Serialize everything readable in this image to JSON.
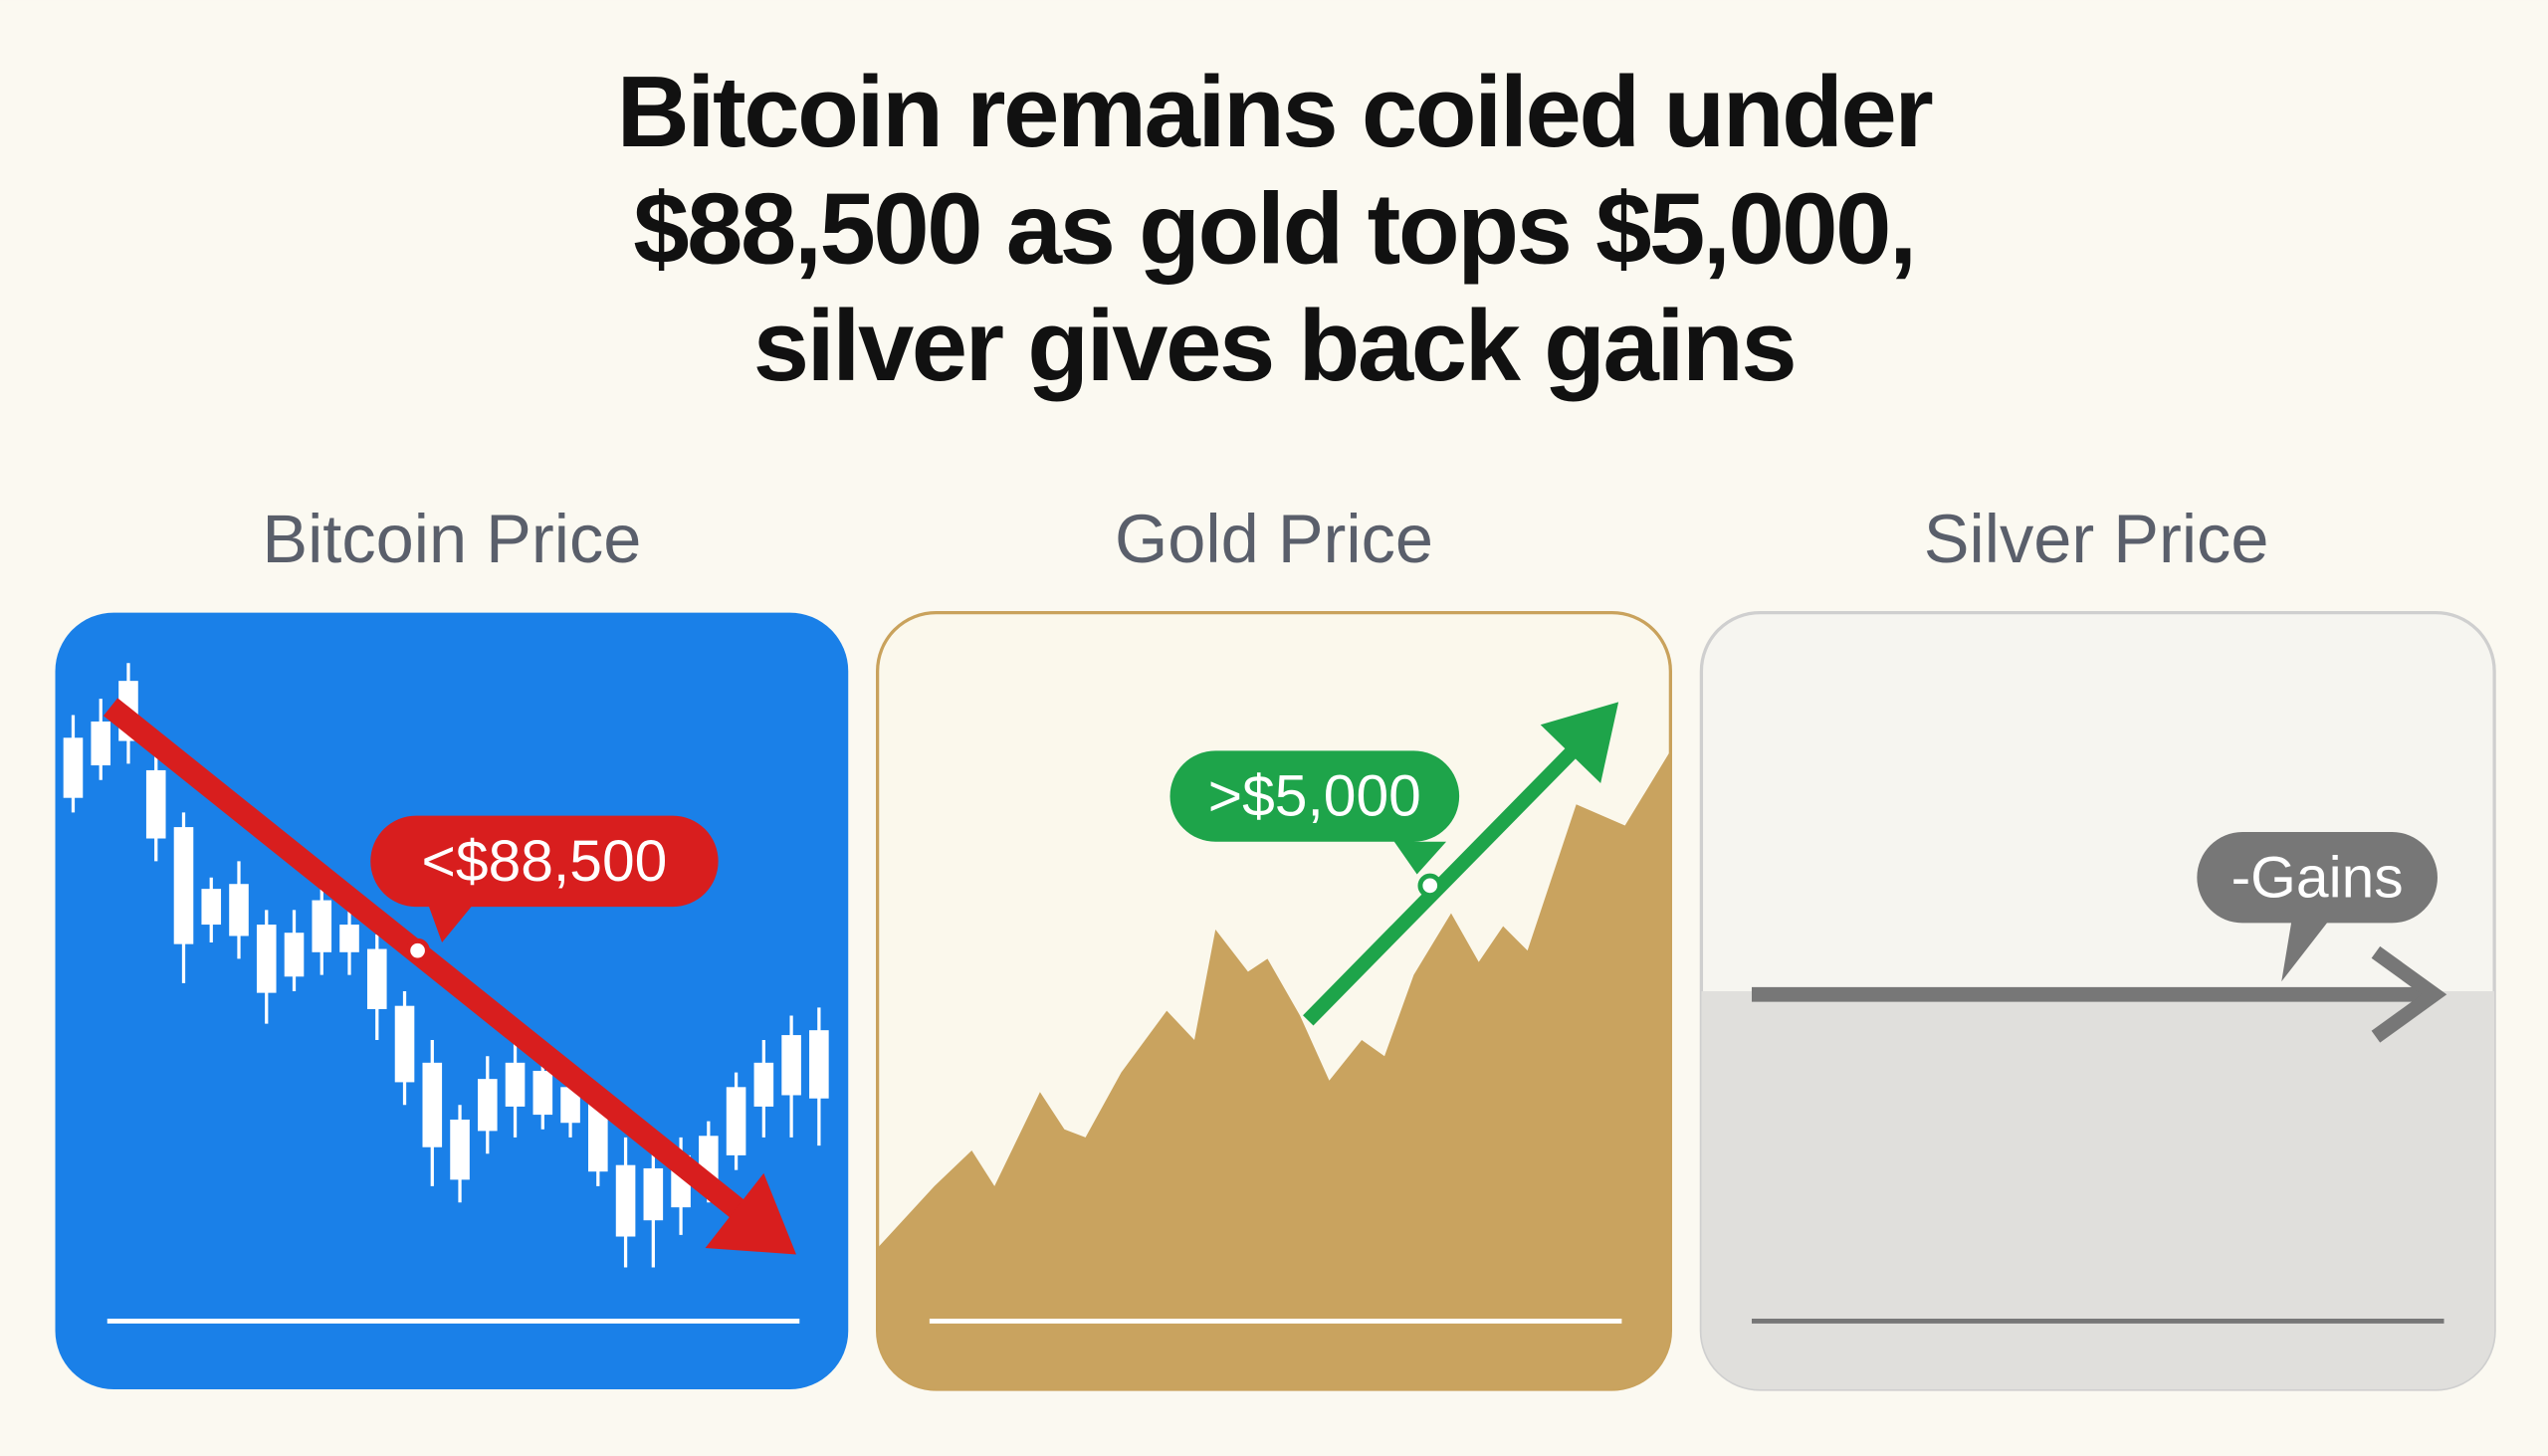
{
  "header": {
    "title_lines": [
      "Bitcoin remains coiled under",
      "$88,500 as gold tops $5,000,",
      "silver gives back gains"
    ]
  },
  "panels": [
    {
      "title": "Bitcoin Price",
      "label": "<$88,500"
    },
    {
      "title": "Gold Price",
      "label": ">$5,000"
    },
    {
      "title": "Silver Price",
      "label": "-Gains"
    }
  ]
}
